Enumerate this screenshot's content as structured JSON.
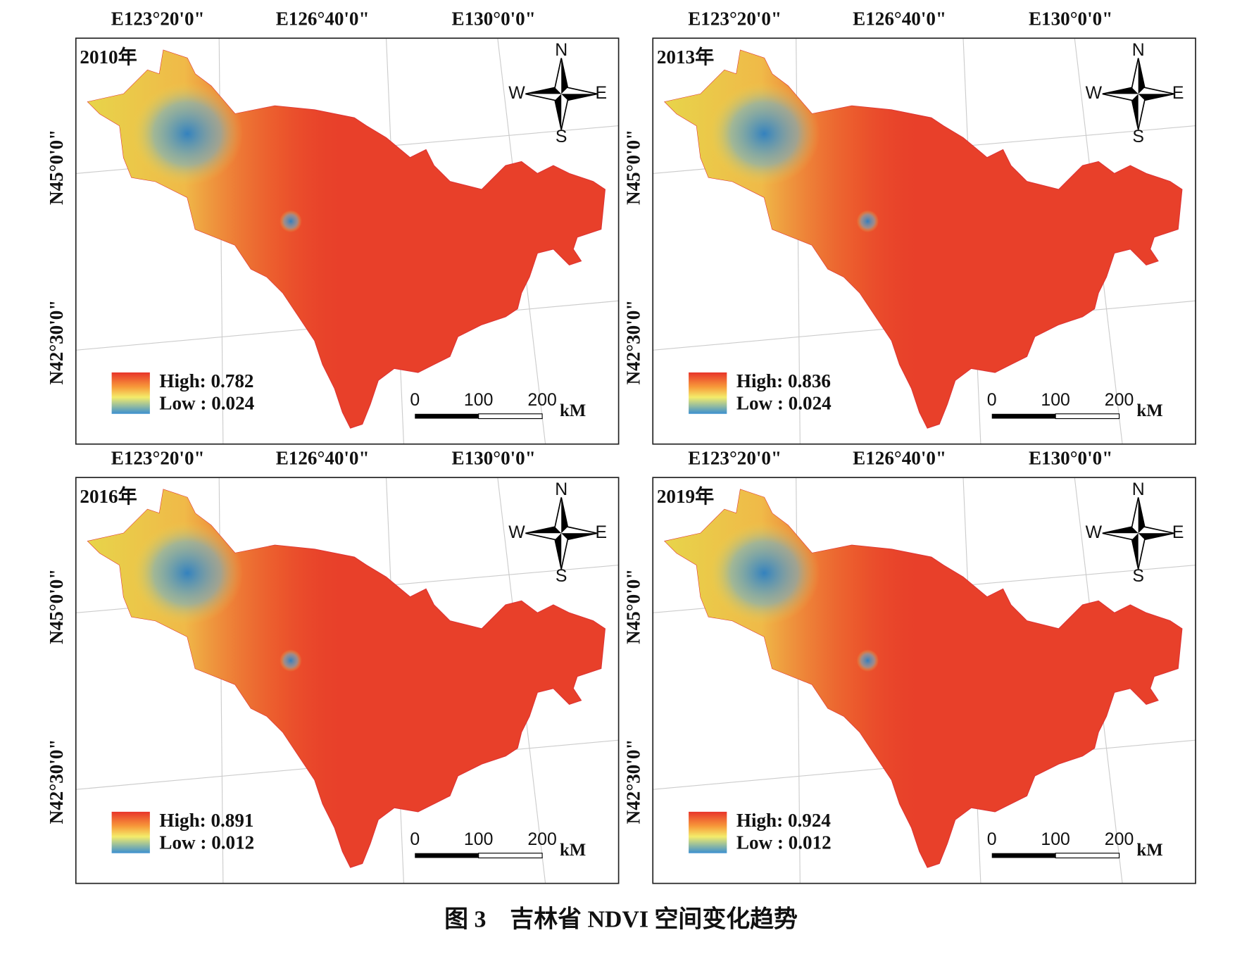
{
  "panels": [
    {
      "year": "2010年",
      "top_labels": [
        "E123°20'0\"",
        "E126°40'0\"",
        "E130°0'0\""
      ],
      "left_labels": [
        "N45°0'0\"",
        "N42°30'0\""
      ],
      "legend_high": "High: 0.782",
      "legend_low": "Low : 0.024",
      "scale_labels": [
        "0",
        "100",
        "200"
      ],
      "scale_unit": "kM",
      "compass": [
        "N",
        "W",
        "E",
        "S"
      ]
    },
    {
      "year": "2013年",
      "top_labels": [
        "E123°20'0\"",
        "E126°40'0\"",
        "E130°0'0\""
      ],
      "left_labels": [
        "N45°0'0\"",
        "N42°30'0\""
      ],
      "legend_high": "High: 0.836",
      "legend_low": "Low : 0.024",
      "scale_labels": [
        "0",
        "100",
        "200"
      ],
      "scale_unit": "kM",
      "compass": [
        "N",
        "W",
        "E",
        "S"
      ]
    },
    {
      "year": "2016年",
      "top_labels": [
        "E123°20'0\"",
        "E126°40'0\"",
        "E130°0'0\""
      ],
      "left_labels": [
        "N45°0'0\"",
        "N42°30'0\""
      ],
      "legend_high": "High: 0.891",
      "legend_low": "Low : 0.012",
      "scale_labels": [
        "0",
        "100",
        "200"
      ],
      "scale_unit": "kM",
      "compass": [
        "N",
        "W",
        "E",
        "S"
      ]
    },
    {
      "year": "2019年",
      "top_labels": [
        "E123°20'0\"",
        "E126°40'0\"",
        "E130°0'0\""
      ],
      "left_labels": [
        "N45°0'0\"",
        "N42°30'0\""
      ],
      "legend_high": "High: 0.924",
      "legend_low": "Low : 0.012",
      "scale_labels": [
        "0",
        "100",
        "200"
      ],
      "scale_unit": "kM",
      "compass": [
        "N",
        "W",
        "E",
        "S"
      ]
    }
  ],
  "caption": "图 3　吉林省 NDVI 空间变化趋势"
}
